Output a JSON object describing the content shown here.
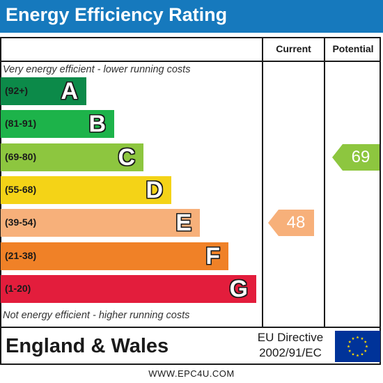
{
  "title": "Energy Efficiency Rating",
  "columns": {
    "current": "Current",
    "potential": "Potential"
  },
  "top_note": "Very energy efficient - lower running costs",
  "bottom_note": "Not energy efficient - higher running costs",
  "footer": {
    "region": "England & Wales",
    "directive_line1": "EU Directive",
    "directive_line2": "2002/91/EC",
    "url": "WWW.EPC4U.COM"
  },
  "colors": {
    "header": "#1679bd",
    "current_arrow": "#f7b07a",
    "potential_arrow": "#8dc63f",
    "flag": "#003399",
    "flag_stars": "#ffdd00"
  },
  "chart_data": {
    "type": "bar",
    "bands": [
      {
        "letter": "A",
        "range": "(92+)",
        "color": "#0c8a49"
      },
      {
        "letter": "B",
        "range": "(81-91)",
        "color": "#1db34a"
      },
      {
        "letter": "C",
        "range": "(69-80)",
        "color": "#8dc63f"
      },
      {
        "letter": "D",
        "range": "(55-68)",
        "color": "#f4d317"
      },
      {
        "letter": "E",
        "range": "(39-54)",
        "color": "#f7b07a"
      },
      {
        "letter": "F",
        "range": "(21-38)",
        "color": "#f08127"
      },
      {
        "letter": "G",
        "range": "(1-20)",
        "color": "#e31d3c"
      }
    ],
    "current": {
      "value": 48,
      "band": "E"
    },
    "potential": {
      "value": 69,
      "band": "C"
    }
  }
}
